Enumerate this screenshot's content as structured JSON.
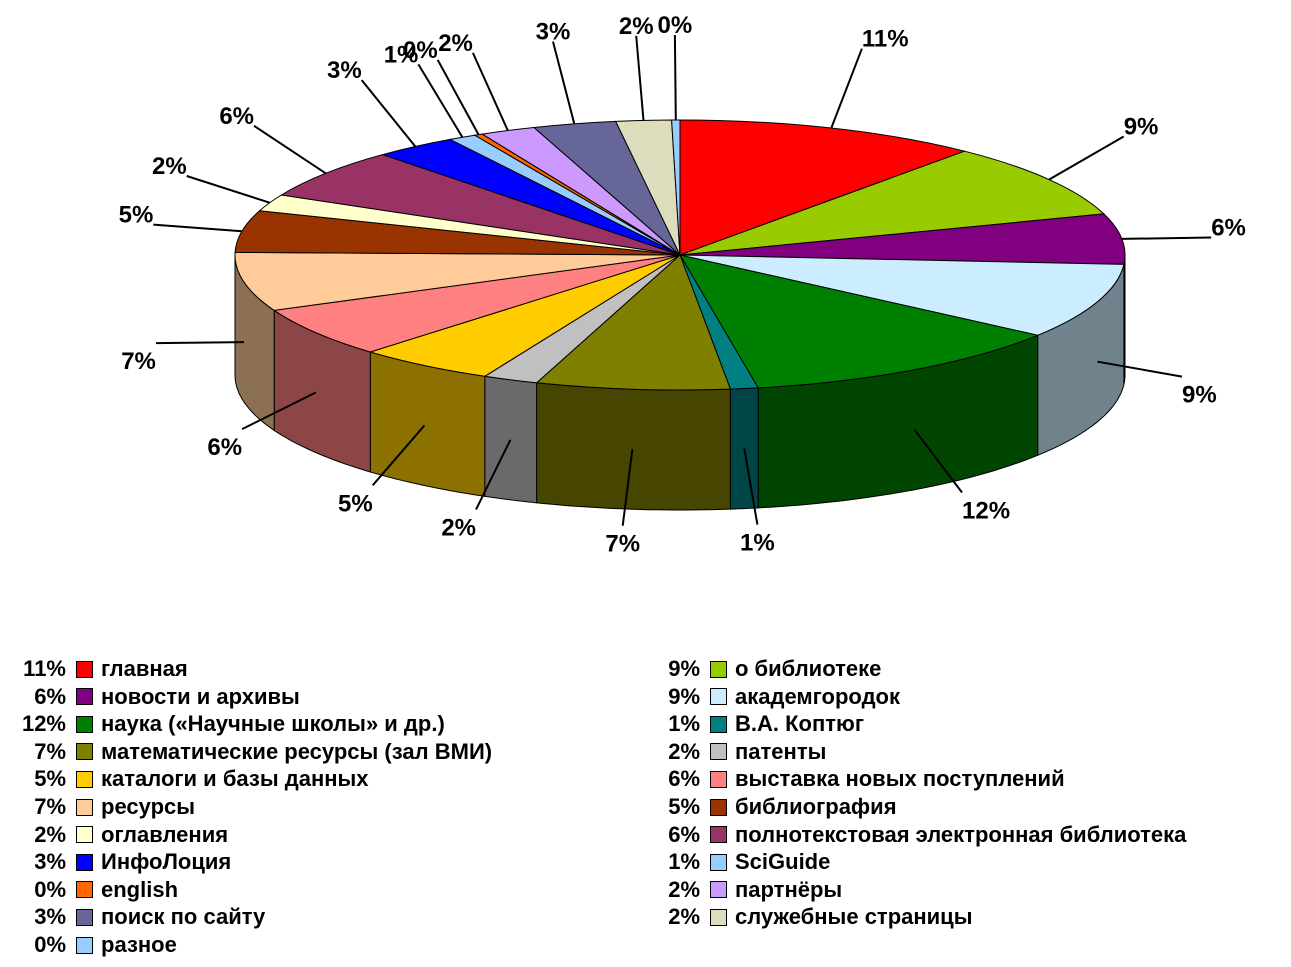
{
  "chart_data": {
    "type": "pie",
    "three_d": true,
    "slices": [
      {
        "name": "главная",
        "value": 11,
        "label": "11%",
        "color": "#ff0000"
      },
      {
        "name": "о библиотеке",
        "value": 9,
        "label": "9%",
        "color": "#99cc00"
      },
      {
        "name": "новости и архивы",
        "value": 6,
        "label": "6%",
        "color": "#800080"
      },
      {
        "name": "академгородок",
        "value": 9,
        "label": "9%",
        "color": "#ccecff"
      },
      {
        "name": "наука («Научные школы» и др.)",
        "value": 12,
        "label": "12%",
        "color": "#008000"
      },
      {
        "name": "В.А. Коптюг",
        "value": 1,
        "label": "1%",
        "color": "#008080"
      },
      {
        "name": "математические ресурсы (зал ВМИ)",
        "value": 7,
        "label": "7%",
        "color": "#808000"
      },
      {
        "name": "патенты",
        "value": 2,
        "label": "2%",
        "color": "#c0c0c0"
      },
      {
        "name": "каталоги и базы данных",
        "value": 5,
        "label": "5%",
        "color": "#ffcc00"
      },
      {
        "name": "выставка новых поступлений",
        "value": 6,
        "label": "6%",
        "color": "#ff8080"
      },
      {
        "name": "ресурсы",
        "value": 7,
        "label": "7%",
        "color": "#ffcc99"
      },
      {
        "name": "библиография",
        "value": 5,
        "label": "5%",
        "color": "#993300"
      },
      {
        "name": "оглавления",
        "value": 2,
        "label": "2%",
        "color": "#ffffcc"
      },
      {
        "name": "полнотекстовая электронная библиотека",
        "value": 6,
        "label": "6%",
        "color": "#993366"
      },
      {
        "name": "ИнфоЛоция",
        "value": 3,
        "label": "3%",
        "color": "#0000ff"
      },
      {
        "name": "SciGuide",
        "value": 1,
        "label": "1%",
        "color": "#99ccff"
      },
      {
        "name": "english",
        "value": 0,
        "label": "0%",
        "color": "#ff6600"
      },
      {
        "name": "партнёры",
        "value": 2,
        "label": "2%",
        "color": "#cc99ff"
      },
      {
        "name": "поиск по сайту",
        "value": 3,
        "label": "3%",
        "color": "#666699"
      },
      {
        "name": "служебные страницы",
        "value": 2,
        "label": "2%",
        "color": "#dddcbc"
      },
      {
        "name": "разное",
        "value": 0,
        "label": "0%",
        "color": "#99ccff"
      }
    ],
    "legend_placement": "bottom"
  },
  "legend": {
    "left": [
      {
        "pct": "11%",
        "name": "главная",
        "color": "#ff0000"
      },
      {
        "pct": "6%",
        "name": "новости и архивы",
        "color": "#800080"
      },
      {
        "pct": "12%",
        "name": "наука («Научные школы» и др.)",
        "color": "#008000"
      },
      {
        "pct": "7%",
        "name": "математические ресурсы (зал ВМИ)",
        "color": "#808000"
      },
      {
        "pct": "5%",
        "name": "каталоги и базы данных",
        "color": "#ffcc00"
      },
      {
        "pct": "7%",
        "name": "ресурсы",
        "color": "#ffcc99"
      },
      {
        "pct": "2%",
        "name": "оглавления",
        "color": "#ffffcc"
      },
      {
        "pct": "3%",
        "name": "ИнфоЛоция",
        "color": "#0000ff"
      },
      {
        "pct": "0%",
        "name": "english",
        "color": "#ff6600"
      },
      {
        "pct": "3%",
        "name": "поиск по сайту",
        "color": "#666699"
      },
      {
        "pct": "0%",
        "name": "разное",
        "color": "#99ccff"
      }
    ],
    "right": [
      {
        "pct": "9%",
        "name": "о библиотеке",
        "color": "#99cc00"
      },
      {
        "pct": "9%",
        "name": "академгородок",
        "color": "#ccecff"
      },
      {
        "pct": "1%",
        "name": "В.А. Коптюг",
        "color": "#008080"
      },
      {
        "pct": "2%",
        "name": "патенты",
        "color": "#c0c0c0"
      },
      {
        "pct": "6%",
        "name": "выставка новых поступлений",
        "color": "#ff8080"
      },
      {
        "pct": "5%",
        "name": "библиография",
        "color": "#993300"
      },
      {
        "pct": "6%",
        "name": "полнотекстовая электронная библиотека",
        "color": "#993366"
      },
      {
        "pct": "1%",
        "name": "SciGuide",
        "color": "#99ccff"
      },
      {
        "pct": "2%",
        "name": "партнёры",
        "color": "#cc99ff"
      },
      {
        "pct": "2%",
        "name": "служебные страницы",
        "color": "#dddcbc"
      }
    ]
  }
}
